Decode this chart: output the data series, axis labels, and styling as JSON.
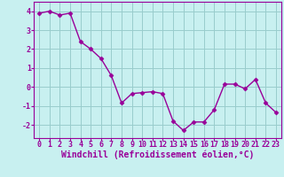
{
  "x": [
    0,
    1,
    2,
    3,
    4,
    5,
    6,
    7,
    8,
    9,
    10,
    11,
    12,
    13,
    14,
    15,
    16,
    17,
    18,
    19,
    20,
    21,
    22,
    23
  ],
  "y": [
    3.9,
    4.0,
    3.8,
    3.9,
    2.4,
    2.0,
    1.5,
    0.6,
    -0.85,
    -0.35,
    -0.3,
    -0.25,
    -0.35,
    -1.8,
    -2.3,
    -1.85,
    -1.85,
    -1.2,
    0.15,
    0.15,
    -0.1,
    0.4,
    -0.85,
    -1.35
  ],
  "line_color": "#990099",
  "marker": "D",
  "markersize": 2.5,
  "linewidth": 1.0,
  "bg_color": "#c8f0f0",
  "grid_color": "#99cccc",
  "xlabel": "Windchill (Refroidissement éolien,°C)",
  "xlabel_color": "#990099",
  "xlabel_fontsize": 7,
  "ytick_labels": [
    "-2",
    "-1",
    "0",
    "1",
    "2",
    "3",
    "4"
  ],
  "ytick_vals": [
    -2,
    -1,
    0,
    1,
    2,
    3,
    4
  ],
  "xtick_vals": [
    0,
    1,
    2,
    3,
    4,
    5,
    6,
    7,
    8,
    9,
    10,
    11,
    12,
    13,
    14,
    15,
    16,
    17,
    18,
    19,
    20,
    21,
    22,
    23
  ],
  "ylim": [
    -2.7,
    4.5
  ],
  "xlim": [
    -0.5,
    23.5
  ],
  "tick_color": "#990099",
  "tick_fontsize": 6,
  "spine_color": "#990099"
}
